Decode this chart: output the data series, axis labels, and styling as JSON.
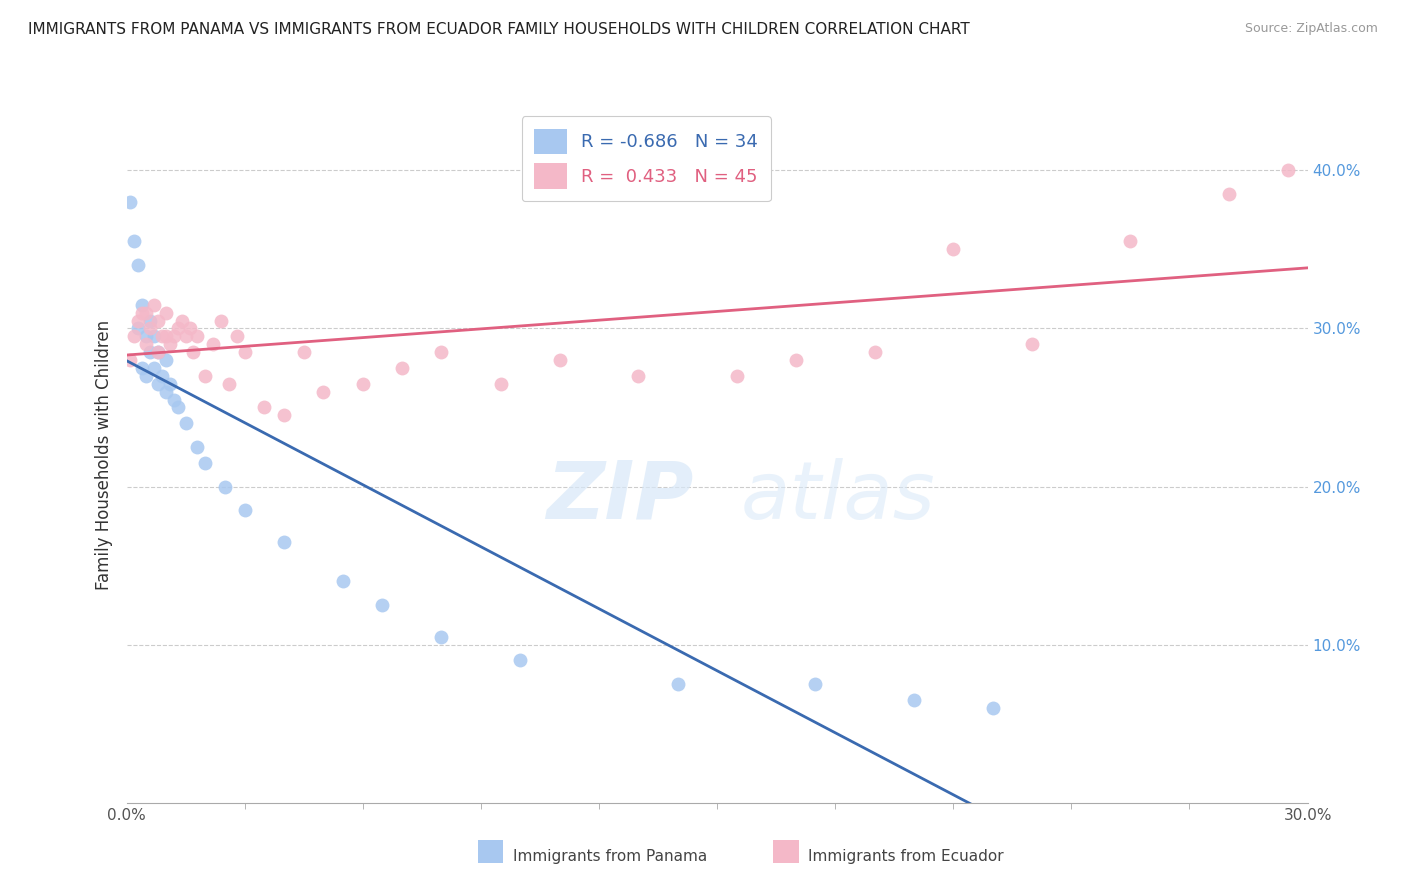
{
  "title": "IMMIGRANTS FROM PANAMA VS IMMIGRANTS FROM ECUADOR FAMILY HOUSEHOLDS WITH CHILDREN CORRELATION CHART",
  "source": "Source: ZipAtlas.com",
  "ylabel": "Family Households with Children",
  "xlim": [
    0.0,
    0.3
  ],
  "ylim": [
    0.0,
    0.44
  ],
  "x_tick_labels": [
    "0.0%",
    "",
    "",
    "",
    "",
    "",
    "",
    "",
    "",
    "",
    "",
    "30.0%"
  ],
  "x_tick_vals": [
    0.0,
    0.03,
    0.06,
    0.09,
    0.12,
    0.15,
    0.18,
    0.21,
    0.24,
    0.27,
    0.295,
    0.3
  ],
  "y_tick_labels": [
    "10.0%",
    "20.0%",
    "30.0%",
    "40.0%"
  ],
  "y_tick_vals": [
    0.1,
    0.2,
    0.3,
    0.4
  ],
  "legend_labels": [
    "Immigrants from Panama",
    "Immigrants from Ecuador"
  ],
  "R_panama": -0.686,
  "N_panama": 34,
  "R_ecuador": 0.433,
  "N_ecuador": 45,
  "color_panama": "#a8c8f0",
  "color_ecuador": "#f4b8c8",
  "line_color_panama": "#3a6ab0",
  "line_color_ecuador": "#e06080",
  "panama_x": [
    0.001,
    0.002,
    0.003,
    0.003,
    0.004,
    0.004,
    0.005,
    0.005,
    0.006,
    0.006,
    0.007,
    0.007,
    0.008,
    0.008,
    0.009,
    0.01,
    0.01,
    0.011,
    0.012,
    0.013,
    0.015,
    0.018,
    0.02,
    0.025,
    0.03,
    0.04,
    0.055,
    0.065,
    0.08,
    0.1,
    0.14,
    0.175,
    0.2,
    0.22
  ],
  "panama_y": [
    0.38,
    0.355,
    0.34,
    0.3,
    0.315,
    0.275,
    0.295,
    0.27,
    0.305,
    0.285,
    0.295,
    0.275,
    0.285,
    0.265,
    0.27,
    0.28,
    0.26,
    0.265,
    0.255,
    0.25,
    0.24,
    0.225,
    0.215,
    0.2,
    0.185,
    0.165,
    0.14,
    0.125,
    0.105,
    0.09,
    0.075,
    0.075,
    0.065,
    0.06
  ],
  "ecuador_x": [
    0.001,
    0.002,
    0.003,
    0.004,
    0.005,
    0.005,
    0.006,
    0.007,
    0.008,
    0.008,
    0.009,
    0.01,
    0.01,
    0.011,
    0.012,
    0.013,
    0.014,
    0.015,
    0.016,
    0.017,
    0.018,
    0.02,
    0.022,
    0.024,
    0.026,
    0.028,
    0.03,
    0.035,
    0.04,
    0.045,
    0.05,
    0.06,
    0.07,
    0.08,
    0.095,
    0.11,
    0.13,
    0.155,
    0.17,
    0.19,
    0.21,
    0.23,
    0.255,
    0.28,
    0.295
  ],
  "ecuador_y": [
    0.28,
    0.295,
    0.305,
    0.31,
    0.31,
    0.29,
    0.3,
    0.315,
    0.285,
    0.305,
    0.295,
    0.31,
    0.295,
    0.29,
    0.295,
    0.3,
    0.305,
    0.295,
    0.3,
    0.285,
    0.295,
    0.27,
    0.29,
    0.305,
    0.265,
    0.295,
    0.285,
    0.25,
    0.245,
    0.285,
    0.26,
    0.265,
    0.275,
    0.285,
    0.265,
    0.28,
    0.27,
    0.27,
    0.28,
    0.285,
    0.35,
    0.29,
    0.355,
    0.385,
    0.4
  ],
  "watermark_zip": "ZIP",
  "watermark_atlas": "atlas",
  "background_color": "#ffffff",
  "grid_color": "#cccccc"
}
